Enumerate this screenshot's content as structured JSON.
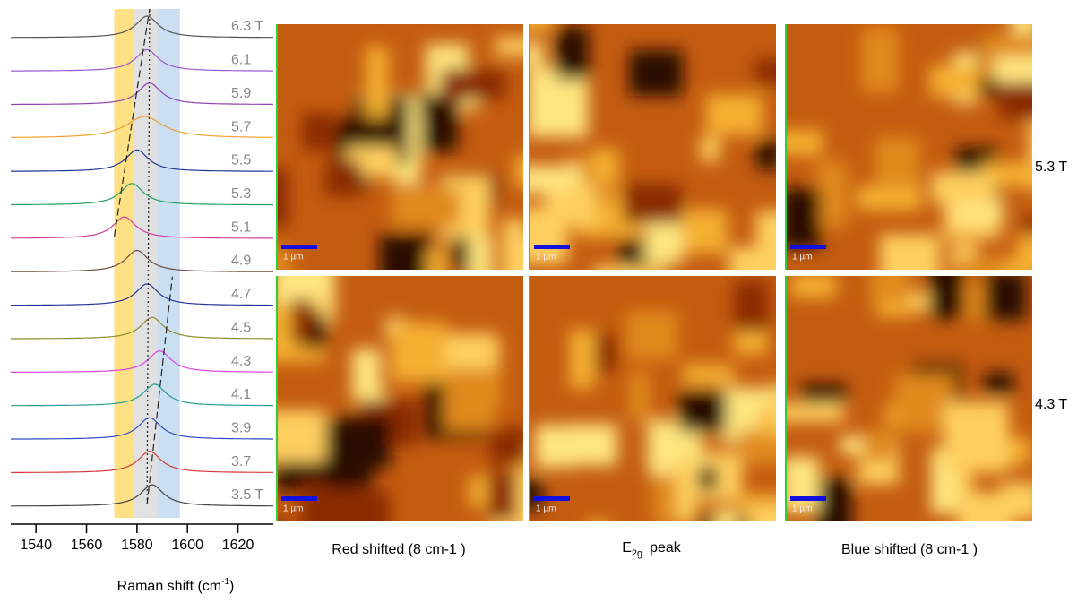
{
  "chart_data": {
    "type": "stacked-spectra",
    "xlim": [
      1530,
      1634
    ],
    "xticks": [
      1540,
      1560,
      1580,
      1600,
      1620
    ],
    "x_label": {
      "text": "Raman shift (cm",
      "sup": "-1",
      "end": ")"
    },
    "bands": [
      {
        "range": [
          1571,
          1579
        ],
        "color": "#ffd966"
      },
      {
        "range": [
          1579,
          1588
        ],
        "color": "#d9d9d9"
      },
      {
        "range": [
          1588,
          1597
        ],
        "color": "#bdd7ee"
      }
    ],
    "dashed_lines": [
      {
        "x": [
          1571,
          1585
        ],
        "from": 6,
        "to": 0
      },
      {
        "x": [
          1584,
          1594
        ],
        "from": 14,
        "to": 8
      },
      {
        "x": [
          1584,
          1585
        ],
        "from": 14,
        "to": 0
      }
    ],
    "series": [
      {
        "name": "6.3 T",
        "color": "#555555",
        "peak": 1584
      },
      {
        "name": "6.1",
        "color": "#9b59d0",
        "peak": 1584
      },
      {
        "name": "5.9",
        "color": "#8e44ad",
        "peak": 1585
      },
      {
        "name": "5.7",
        "color": "#f0a030",
        "peak": 1583
      },
      {
        "name": "5.5",
        "color": "#1f3a93",
        "peak": 1580
      },
      {
        "name": "5.3",
        "color": "#27a060",
        "peak": 1578
      },
      {
        "name": "5.1",
        "color": "#d63ca0",
        "peak": 1575
      },
      {
        "name": "4.9",
        "color": "#6d4c41",
        "peak": 1580
      },
      {
        "name": "4.7",
        "color": "#283593",
        "peak": 1584
      },
      {
        "name": "4.5",
        "color": "#8d8d2a",
        "peak": 1586
      },
      {
        "name": "4.3",
        "color": "#e040e0",
        "peak": 1589
      },
      {
        "name": "4.1",
        "color": "#2a9d8f",
        "peak": 1587
      },
      {
        "name": "3.9",
        "color": "#2e4bc6",
        "peak": 1585
      },
      {
        "name": "3.7",
        "color": "#d63a3a",
        "peak": 1585
      },
      {
        "name": "3.5 T",
        "color": "#444444",
        "peak": 1586
      }
    ]
  },
  "maps": {
    "rows": [
      "5.3 T",
      "4.3 T"
    ],
    "columns": [
      {
        "text": "Red shifted (8 cm-1 )"
      },
      {
        "base": "E",
        "sub": "2g",
        "rest": "peak"
      },
      {
        "text": "Blue shifted (8 cm-1 )"
      }
    ],
    "scale_bar": "1 µm"
  }
}
